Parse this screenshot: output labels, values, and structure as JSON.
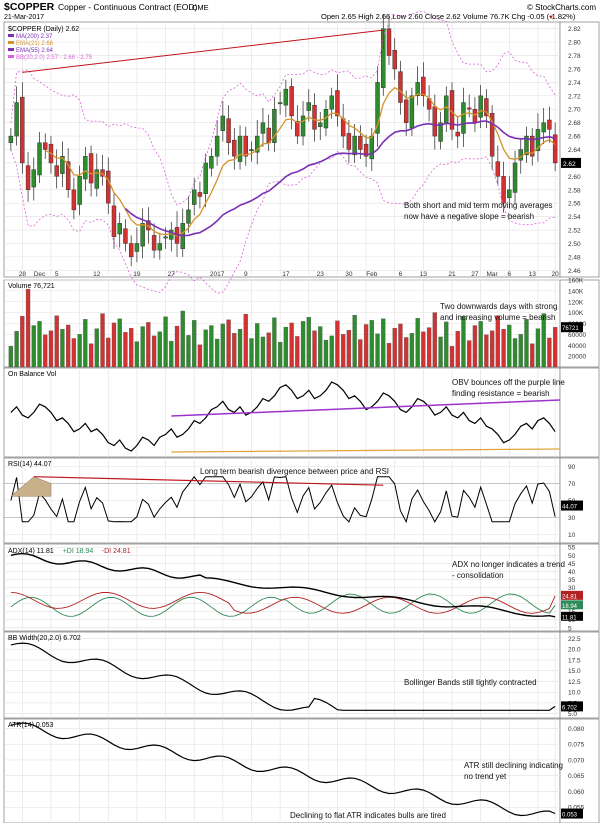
{
  "header": {
    "symbol": "$COPPER",
    "description": "Copper - Continuous Contract (EOD)",
    "exchange": "CME",
    "date": "21-Mar-2017",
    "ohlc": "Open 2.65  High 2.66  Low 2.60  Close 2.62  Volume 76.7K  Chg -0.05 (-1.82%)",
    "chg_arrow": "▼",
    "watermark": "© StockCharts.com"
  },
  "colors": {
    "up": "#2e8b2e",
    "down": "#d13232",
    "ma200": "#7b2fb5",
    "ema21": "#d4922a",
    "ema55": "#7b2fb5",
    "bb": "#d866d8",
    "trendline": "#c0141b",
    "purple_line": "#9b34c9",
    "gold_line": "#e0a43c"
  },
  "x_axis": {
    "labels": [
      "28",
      "Dec",
      "5",
      "12",
      "19",
      "27",
      "2017",
      "9",
      "17",
      "23",
      "30",
      "Feb",
      "6",
      "13",
      "21",
      "27",
      "Mar",
      "6",
      "13",
      "20"
    ]
  },
  "chart_data": [
    {
      "type": "candlestick",
      "panel": "price",
      "title": "$COPPER (Daily) 2.62",
      "legend": [
        {
          "label": "MA(200) 2.37",
          "color": "#7b2fb5"
        },
        {
          "label": "EMA(21) 2.66",
          "color": "#d4922a"
        },
        {
          "label": "EMA(55) 2.64",
          "color": "#7b2fb5"
        },
        {
          "label": "BB(20,2.0) 2.57 - 2.66 - 2.75",
          "color": "#d866d8"
        }
      ],
      "y_ticks": [
        "2.82",
        "2.80",
        "2.78",
        "2.76",
        "2.74",
        "2.72",
        "2.70",
        "2.68",
        "2.66",
        "2.64",
        "2.62",
        "2.60",
        "2.58",
        "2.56",
        "2.54",
        "2.52",
        "2.50",
        "2.48",
        "2.46"
      ],
      "ylim": [
        2.45,
        2.83
      ],
      "closes": [
        2.66,
        2.71,
        2.62,
        2.58,
        2.61,
        2.65,
        2.64,
        2.62,
        2.6,
        2.63,
        2.58,
        2.55,
        2.6,
        2.63,
        2.59,
        2.61,
        2.6,
        2.56,
        2.51,
        2.53,
        2.5,
        2.48,
        2.5,
        2.53,
        2.52,
        2.49,
        2.5,
        2.51,
        2.52,
        2.5,
        2.53,
        2.55,
        2.58,
        2.57,
        2.62,
        2.63,
        2.66,
        2.69,
        2.65,
        2.63,
        2.66,
        2.63,
        2.64,
        2.66,
        2.68,
        2.65,
        2.7,
        2.71,
        2.73,
        2.69,
        2.66,
        2.69,
        2.71,
        2.67,
        2.68,
        2.7,
        2.72,
        2.69,
        2.66,
        2.64,
        2.66,
        2.64,
        2.63,
        2.66,
        2.74,
        2.82,
        2.78,
        2.76,
        2.71,
        2.68,
        2.72,
        2.74,
        2.72,
        2.7,
        2.66,
        2.68,
        2.72,
        2.67,
        2.66,
        2.71,
        2.7,
        2.68,
        2.72,
        2.69,
        2.63,
        2.6,
        2.56,
        2.58,
        2.62,
        2.64,
        2.66,
        2.63,
        2.67,
        2.68,
        2.67,
        2.62
      ],
      "annotation": "Both short and mid term moving averages\nnow have a negative slope = bearish"
    },
    {
      "type": "bar",
      "panel": "volume",
      "title": "Volume 76,721",
      "y_ticks": [
        "160K",
        "140K",
        "120K",
        "100K",
        "80000",
        "60000",
        "40000",
        "20000"
      ],
      "ylim": [
        0,
        160000
      ],
      "last_value_label": "76721",
      "annotation": "Two downwards days with strong\nand increasing volume = bearish"
    },
    {
      "type": "line",
      "panel": "obv",
      "title": "On Balance Vol",
      "annotation": "OBV bounces off the purple line\nfinding resistance = bearish"
    },
    {
      "type": "line",
      "panel": "rsi",
      "title": "RSI(14) 44.07",
      "y_ticks": [
        "90",
        "70",
        "50",
        "30",
        "10"
      ],
      "ylim": [
        0,
        100
      ],
      "last_value_label": "44.07",
      "annotation": "Long term bearish divergence between price and RSI"
    },
    {
      "type": "line",
      "panel": "adx",
      "title_parts": [
        {
          "text": "ADX(14) 11.81",
          "color": "#000000"
        },
        {
          "text": "+DI 18.94",
          "color": "#2e8b57"
        },
        {
          "text": "-DI 24.81",
          "color": "#b22222"
        }
      ],
      "y_ticks": [
        "55",
        "50",
        "45",
        "40",
        "35",
        "30",
        "25",
        "20",
        "15",
        "10",
        "5"
      ],
      "ylim": [
        3,
        57
      ],
      "last_labels": [
        "24.81",
        "18.94",
        "11.81"
      ],
      "annotation": "ADX no longer indicates a trend\n- consolidation"
    },
    {
      "type": "line",
      "panel": "bbwidth",
      "title": "BB Width(20,2.0) 6.702",
      "y_ticks": [
        "22.5",
        "20.0",
        "17.5",
        "15.0",
        "12.5",
        "10.0",
        "7.5",
        "5.0"
      ],
      "ylim": [
        4,
        24
      ],
      "last_value_label": "6.702",
      "annotation": "Bollinger Bands still tightly contracted"
    },
    {
      "type": "line",
      "panel": "atr",
      "title": "ATR(14) 0.053",
      "y_ticks": [
        "0.080",
        "0.075",
        "0.070",
        "0.065",
        "0.060",
        "0.055"
      ],
      "ylim": [
        0.05,
        0.083
      ],
      "last_value_label": "0.053",
      "annotation": "ATR still declining indicating\nno trend yet",
      "footer_annotation": "Declining to flat ATR indicates bulls are tired"
    }
  ]
}
